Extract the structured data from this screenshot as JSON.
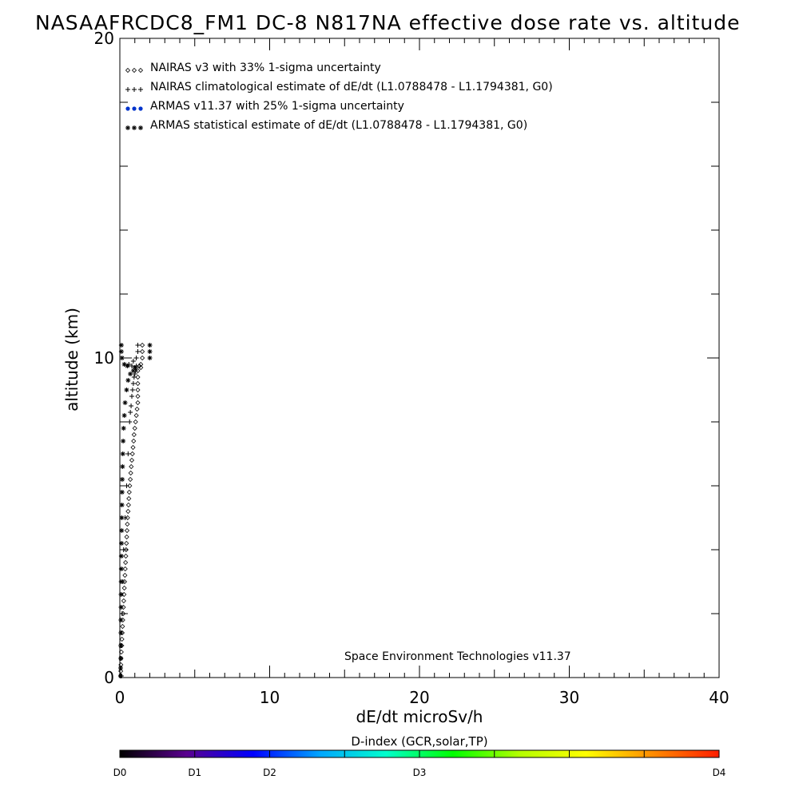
{
  "chart_data": {
    "type": "scatter",
    "title": "NASAAFRCDC8_FM1 DC-8   N817NA effective dose rate vs. altitude",
    "xlabel": "dE/dt microSv/h",
    "ylabel": "altitude (km)",
    "xlim": [
      0,
      40
    ],
    "ylim": [
      0,
      20
    ],
    "x_ticks": [
      "0",
      "10",
      "20",
      "30",
      "40"
    ],
    "y_ticks": [
      "0",
      "10",
      "20"
    ],
    "grid": false,
    "legend_position": "top-left",
    "credit": "Space Environment Technologies v11.37",
    "series": [
      {
        "name": "NAIRAS v3 with 33% 1-sigma uncertainty",
        "marker": "diamond",
        "color": "#000000",
        "points": [
          [
            0.05,
            0.05
          ],
          [
            0.06,
            0.2
          ],
          [
            0.07,
            0.4
          ],
          [
            0.08,
            0.6
          ],
          [
            0.1,
            0.8
          ],
          [
            0.12,
            1.0
          ],
          [
            0.14,
            1.2
          ],
          [
            0.16,
            1.4
          ],
          [
            0.18,
            1.6
          ],
          [
            0.2,
            1.8
          ],
          [
            0.22,
            2.0
          ],
          [
            0.24,
            2.2
          ],
          [
            0.26,
            2.4
          ],
          [
            0.28,
            2.6
          ],
          [
            0.3,
            2.8
          ],
          [
            0.32,
            3.0
          ],
          [
            0.34,
            3.2
          ],
          [
            0.36,
            3.4
          ],
          [
            0.38,
            3.6
          ],
          [
            0.4,
            3.8
          ],
          [
            0.42,
            4.0
          ],
          [
            0.44,
            4.2
          ],
          [
            0.46,
            4.4
          ],
          [
            0.48,
            4.6
          ],
          [
            0.5,
            4.8
          ],
          [
            0.52,
            5.0
          ],
          [
            0.55,
            5.2
          ],
          [
            0.58,
            5.4
          ],
          [
            0.6,
            5.6
          ],
          [
            0.63,
            5.8
          ],
          [
            0.66,
            6.0
          ],
          [
            0.7,
            6.2
          ],
          [
            0.73,
            6.4
          ],
          [
            0.76,
            6.6
          ],
          [
            0.8,
            6.8
          ],
          [
            0.84,
            7.0
          ],
          [
            0.88,
            7.2
          ],
          [
            0.92,
            7.4
          ],
          [
            0.95,
            7.6
          ],
          [
            1.0,
            7.8
          ],
          [
            1.05,
            8.0
          ],
          [
            1.1,
            8.2
          ],
          [
            1.15,
            8.4
          ],
          [
            1.2,
            8.6
          ],
          [
            1.2,
            8.8
          ],
          [
            1.2,
            9.0
          ],
          [
            1.2,
            9.2
          ],
          [
            1.2,
            9.4
          ],
          [
            1.2,
            9.6
          ],
          [
            1.3,
            9.75
          ],
          [
            1.4,
            9.7
          ],
          [
            1.4,
            9.8
          ],
          [
            1.5,
            10.0
          ],
          [
            1.5,
            10.2
          ],
          [
            1.5,
            10.4
          ]
        ]
      },
      {
        "name": "NAIRAS climatological estimate of dE/dt (L1.0788478 - L1.1794381, G0)",
        "marker": "plus",
        "color": "#000000",
        "points": [
          [
            0.1,
            0.05
          ],
          [
            0.12,
            1.0
          ],
          [
            0.15,
            2.0
          ],
          [
            0.2,
            3.0
          ],
          [
            0.25,
            4.0
          ],
          [
            0.35,
            5.0
          ],
          [
            0.45,
            6.0
          ],
          [
            0.55,
            7.0
          ],
          [
            0.65,
            8.0
          ],
          [
            0.7,
            8.3
          ],
          [
            0.75,
            8.5
          ],
          [
            0.8,
            8.8
          ],
          [
            0.85,
            9.0
          ],
          [
            0.9,
            9.2
          ],
          [
            0.95,
            9.4
          ],
          [
            1.0,
            9.5
          ],
          [
            1.05,
            9.6
          ],
          [
            1.1,
            9.7
          ],
          [
            1.1,
            9.75
          ],
          [
            0.8,
            9.75
          ],
          [
            0.6,
            9.8
          ],
          [
            0.9,
            9.9
          ],
          [
            1.1,
            10.0
          ],
          [
            1.2,
            10.2
          ],
          [
            1.2,
            10.4
          ]
        ]
      },
      {
        "name": "ARMAS v11.37 with 25% 1-sigma uncertainty",
        "marker": "dot",
        "color": "#0033cc",
        "points": []
      },
      {
        "name": "ARMAS statistical estimate of dE/dt (L1.0788478 - L1.1794381, G0)",
        "marker": "asterisk",
        "color": "#000000",
        "points": [
          [
            0.05,
            0.05
          ],
          [
            0.05,
            0.3
          ],
          [
            0.06,
            0.6
          ],
          [
            0.06,
            1.0
          ],
          [
            0.07,
            1.4
          ],
          [
            0.07,
            1.8
          ],
          [
            0.08,
            2.2
          ],
          [
            0.08,
            2.6
          ],
          [
            0.09,
            3.0
          ],
          [
            0.1,
            3.4
          ],
          [
            0.1,
            3.8
          ],
          [
            0.11,
            4.2
          ],
          [
            0.12,
            4.6
          ],
          [
            0.13,
            5.0
          ],
          [
            0.14,
            5.4
          ],
          [
            0.15,
            5.8
          ],
          [
            0.16,
            6.2
          ],
          [
            0.18,
            6.6
          ],
          [
            0.2,
            7.0
          ],
          [
            0.22,
            7.4
          ],
          [
            0.25,
            7.8
          ],
          [
            0.3,
            8.2
          ],
          [
            0.35,
            8.6
          ],
          [
            0.45,
            9.0
          ],
          [
            0.55,
            9.3
          ],
          [
            0.7,
            9.5
          ],
          [
            0.9,
            9.6
          ],
          [
            1.0,
            9.7
          ],
          [
            0.5,
            9.75
          ],
          [
            0.3,
            9.8
          ],
          [
            0.15,
            10.0
          ],
          [
            0.1,
            10.2
          ],
          [
            0.1,
            10.4
          ],
          [
            2.0,
            10.0
          ],
          [
            2.0,
            10.2
          ],
          [
            2.0,
            10.4
          ]
        ]
      }
    ],
    "colorbar": {
      "title": "D-index (GCR,solar,TP)",
      "labels": [
        {
          "text": "D0",
          "value": 0
        },
        {
          "text": "D1",
          "value": 0.125
        },
        {
          "text": "D2",
          "value": 0.25
        },
        {
          "text": "D3",
          "value": 0.5
        },
        {
          "text": "D4",
          "value": 1.0
        }
      ],
      "colors": [
        "#000000",
        "#5a008f",
        "#0000ff",
        "#00a5ff",
        "#00ffcc",
        "#00ff00",
        "#b4ff00",
        "#ffff00",
        "#ff8c00",
        "#ff1e00"
      ]
    }
  }
}
